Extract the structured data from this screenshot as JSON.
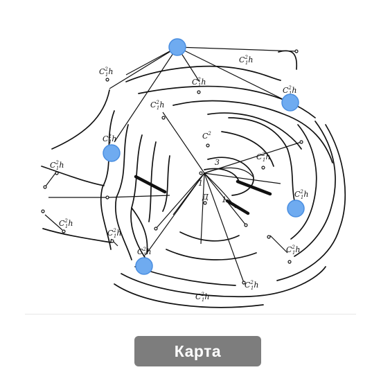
{
  "map": {
    "point_label": "C",
    "point_label_sub": "1",
    "point_label_sup": "2",
    "point_label_suffix": "h",
    "zone_labels": [
      "3",
      "1",
      "Д",
      "1"
    ],
    "marker_color": "#6fabf0",
    "marker_icon": "map-pin-circle-icon"
  },
  "footer": {
    "button_label": "Карта",
    "button_color": "#7d7d7d"
  }
}
